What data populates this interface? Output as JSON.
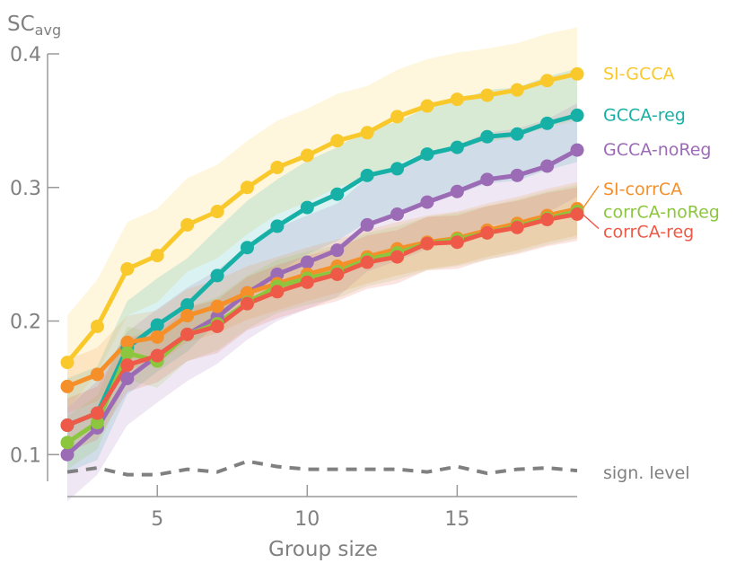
{
  "chart_data": {
    "type": "line",
    "ylabel": {
      "main": "SC",
      "sub": "avg"
    },
    "xlabel": "Group size",
    "xlim": [
      2,
      19
    ],
    "ylim": [
      0.08,
      0.4
    ],
    "x_ticks": [
      5,
      10,
      15
    ],
    "x_tick_labels": [
      "5",
      "10",
      "15"
    ],
    "y_ticks": [
      0.1,
      0.2,
      0.3,
      0.4
    ],
    "y_tick_labels": [
      "0.1",
      "0.2",
      "0.3",
      "0.4"
    ],
    "grid": false,
    "legend_placement": "right, inline at line ends",
    "x": [
      2,
      3,
      4,
      5,
      6,
      7,
      8,
      9,
      10,
      11,
      12,
      13,
      14,
      15,
      16,
      17,
      18,
      19
    ],
    "series": [
      {
        "name": "SI-GCCA",
        "color": "#f9c92c",
        "values": [
          0.169,
          0.196,
          0.239,
          0.249,
          0.272,
          0.282,
          0.3,
          0.315,
          0.324,
          0.335,
          0.341,
          0.353,
          0.361,
          0.366,
          0.369,
          0.373,
          0.38,
          0.385
        ],
        "band": 0.035
      },
      {
        "name": "GCCA-reg",
        "color": "#17b0a6",
        "values": [
          0.122,
          0.131,
          0.18,
          0.197,
          0.212,
          0.234,
          0.255,
          0.271,
          0.285,
          0.295,
          0.309,
          0.314,
          0.325,
          0.33,
          0.338,
          0.34,
          0.348,
          0.354
        ],
        "band": 0.035
      },
      {
        "name": "GCCA-noReg",
        "color": "#9b6bb5",
        "values": [
          0.1,
          0.12,
          0.157,
          0.174,
          0.19,
          0.203,
          0.221,
          0.235,
          0.244,
          0.253,
          0.272,
          0.28,
          0.289,
          0.297,
          0.306,
          0.309,
          0.316,
          0.328
        ],
        "band": 0.035
      },
      {
        "name": "SI-corrCA",
        "color": "#f58f29",
        "values": [
          0.151,
          0.16,
          0.184,
          0.188,
          0.204,
          0.211,
          0.221,
          0.228,
          0.235,
          0.241,
          0.248,
          0.254,
          0.259,
          0.262,
          0.268,
          0.273,
          0.279,
          0.284
        ],
        "band": 0.02
      },
      {
        "name": "corrCA-noReg",
        "color": "#8cc63f",
        "values": [
          0.109,
          0.124,
          0.176,
          0.17,
          0.19,
          0.198,
          0.214,
          0.226,
          0.232,
          0.237,
          0.246,
          0.251,
          0.258,
          0.261,
          0.266,
          0.271,
          0.277,
          0.282
        ],
        "band": 0.02
      },
      {
        "name": "corrCA-reg",
        "color": "#ee5a47",
        "values": [
          0.122,
          0.131,
          0.167,
          0.174,
          0.19,
          0.196,
          0.213,
          0.222,
          0.229,
          0.235,
          0.244,
          0.248,
          0.258,
          0.259,
          0.266,
          0.27,
          0.276,
          0.28
        ],
        "band": 0.02
      }
    ],
    "significance": {
      "name": "sign. level",
      "color": "#808080",
      "values": [
        0.087,
        0.09,
        0.085,
        0.085,
        0.089,
        0.087,
        0.095,
        0.091,
        0.089,
        0.089,
        0.089,
        0.089,
        0.087,
        0.091,
        0.086,
        0.089,
        0.09,
        0.088
      ]
    }
  }
}
